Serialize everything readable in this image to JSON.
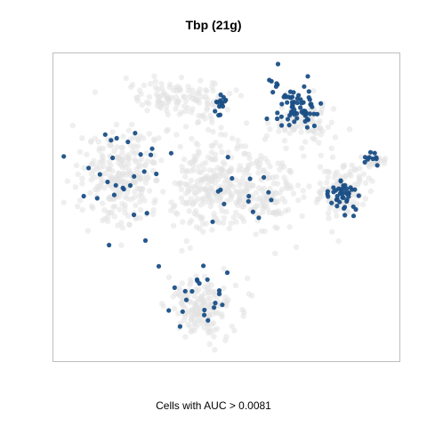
{
  "chart_data": {
    "type": "scatter",
    "title": "Tbp (21g)",
    "xlabel": "",
    "ylabel": "",
    "caption": "Cells with AUC > 0.0081",
    "grid": false,
    "legend": "none",
    "xlim": [
      0,
      100
    ],
    "ylim": [
      0,
      100
    ],
    "series": [
      {
        "name": "cells (AUC <= threshold)",
        "color": "#e1e1e1",
        "clusters": [
          {
            "cx": 20,
            "cy": 60,
            "sx": 11,
            "sy": 15,
            "n": 260
          },
          {
            "cx": 45,
            "cy": 58,
            "sx": 9,
            "sy": 16,
            "n": 220
          },
          {
            "cx": 60,
            "cy": 55,
            "sx": 10,
            "sy": 12,
            "n": 160
          },
          {
            "cx": 43,
            "cy": 18,
            "sx": 9,
            "sy": 9,
            "n": 170
          },
          {
            "cx": 36,
            "cy": 86,
            "sx": 14,
            "sy": 6,
            "n": 110
          },
          {
            "cx": 72,
            "cy": 78,
            "sx": 9,
            "sy": 7,
            "n": 90
          },
          {
            "cx": 83,
            "cy": 55,
            "sx": 7,
            "sy": 9,
            "n": 110
          },
          {
            "cx": 93,
            "cy": 65,
            "sx": 3,
            "sy": 2,
            "n": 25
          }
        ]
      },
      {
        "name": "cells (AUC > 0.0081)",
        "color": "#1a4f86",
        "clusters": [
          {
            "cx": 70,
            "cy": 83,
            "sx": 6,
            "sy": 7,
            "n": 70
          },
          {
            "cx": 83,
            "cy": 54,
            "sx": 4,
            "sy": 6,
            "n": 42
          },
          {
            "cx": 48,
            "cy": 83,
            "sx": 3,
            "sy": 4,
            "n": 14
          },
          {
            "cx": 42,
            "cy": 20,
            "sx": 10,
            "sy": 8,
            "n": 22
          },
          {
            "cx": 22,
            "cy": 58,
            "sx": 13,
            "sy": 17,
            "n": 28
          },
          {
            "cx": 57,
            "cy": 55,
            "sx": 10,
            "sy": 12,
            "n": 14
          },
          {
            "cx": 92,
            "cy": 66,
            "sx": 3,
            "sy": 2,
            "n": 10
          }
        ]
      }
    ]
  }
}
